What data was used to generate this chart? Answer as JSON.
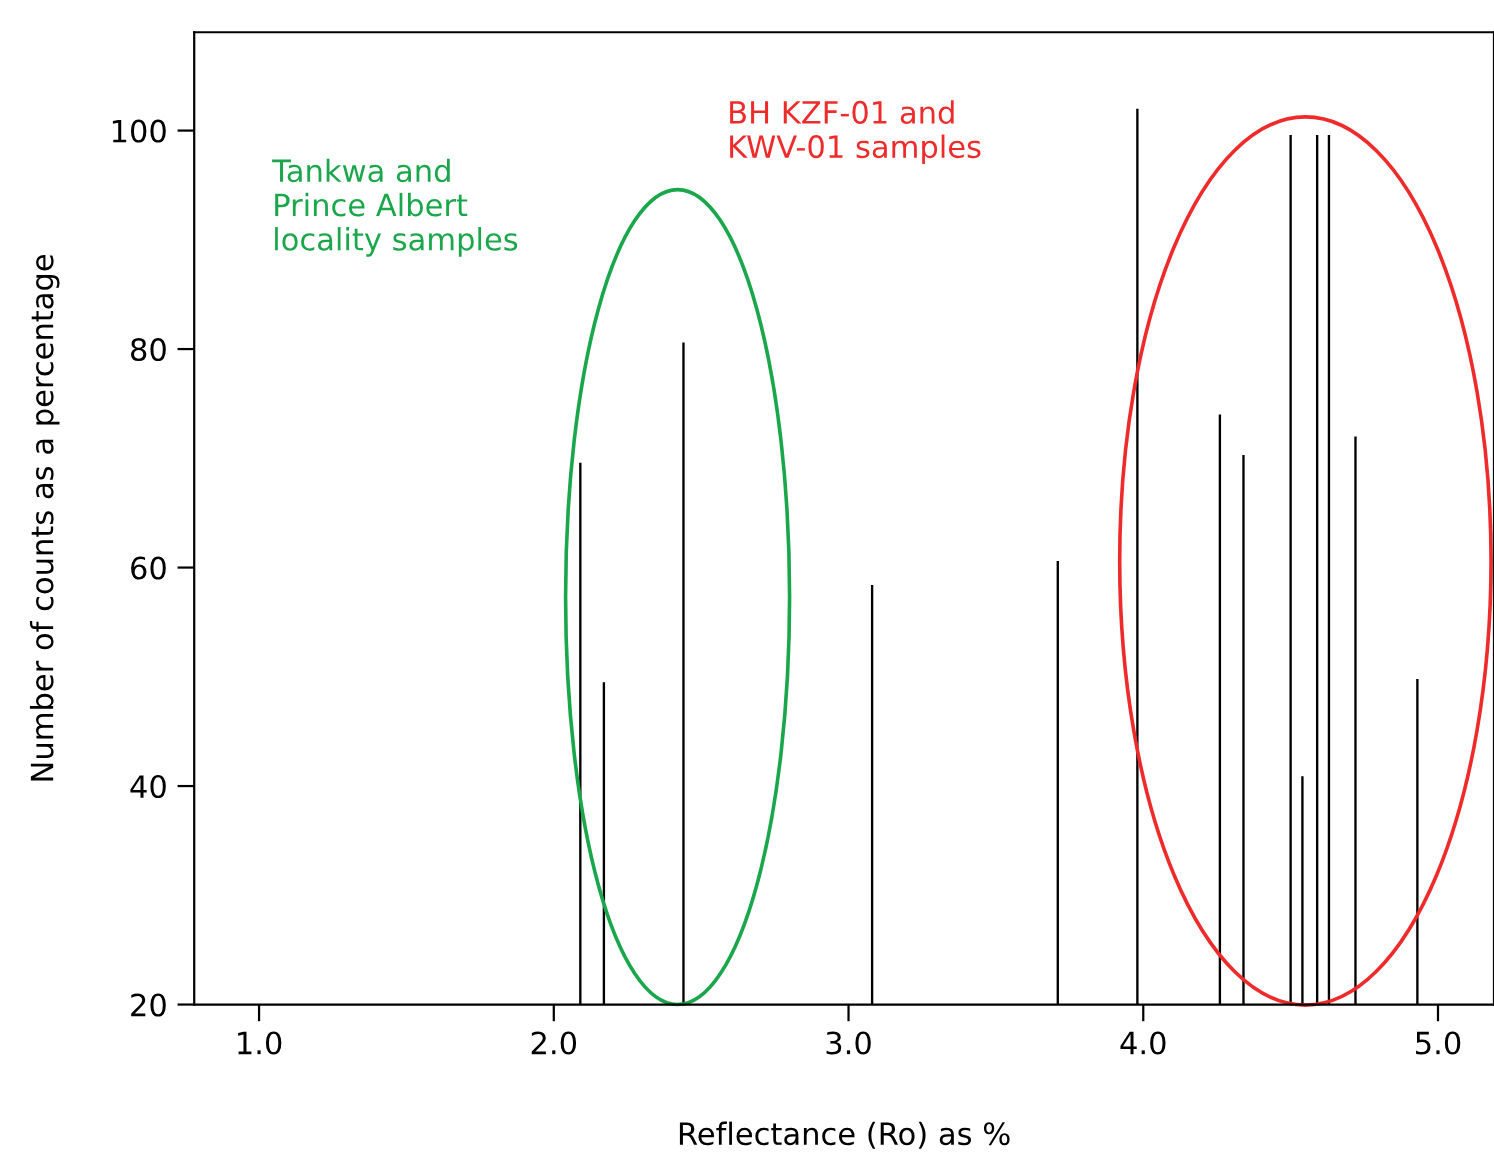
{
  "chart_data": {
    "type": "bar",
    "xlabel": "Reflectance (Ro) as %",
    "ylabel": "Number of counts as a percentage",
    "x": [
      2.09,
      2.17,
      2.44,
      3.08,
      3.71,
      3.98,
      4.26,
      4.34,
      4.5,
      4.54,
      4.59,
      4.63,
      4.72,
      4.93
    ],
    "values": [
      69.6,
      49.5,
      80.6,
      58.4,
      60.6,
      102,
      74.0,
      70.3,
      99.6,
      40.9,
      99.6,
      99.6,
      72.0,
      49.8
    ],
    "color": "#000000",
    "xlim": [
      0.78,
      5.19
    ],
    "ylim": [
      20,
      109
    ],
    "xticks": [
      {
        "value": 1,
        "label": "1.0"
      },
      {
        "value": 2,
        "label": "2.0"
      },
      {
        "value": 3,
        "label": "3.0"
      },
      {
        "value": 4,
        "label": "4.0"
      },
      {
        "value": 5,
        "label": "5.0"
      }
    ],
    "yticks": [
      20,
      40,
      60,
      80,
      100
    ],
    "annotations": [
      "Tankwa and\nPrince Albert\nlocality samples",
      "BH KZF-01 and\nKWV-01 samples"
    ],
    "grid": false
  }
}
